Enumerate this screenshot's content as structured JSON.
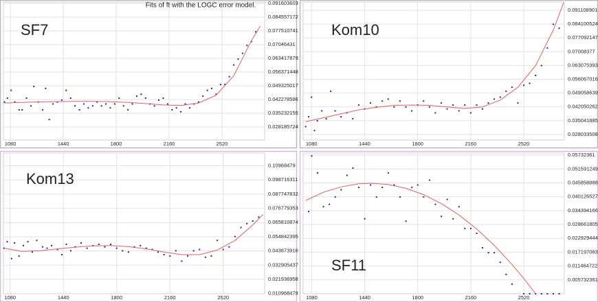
{
  "title": "Fits of ft with the LOGC error model.",
  "chart_data": [
    {
      "type": "scatter",
      "label": "SF7",
      "xlim": [
        1033,
        2810
      ],
      "ylim": [
        0.0215,
        0.0923
      ],
      "grid": true,
      "xticks": [
        1080,
        1440,
        1800,
        2160,
        2520
      ],
      "yticks": [
        0.028185724,
        0.035232155,
        0.042278586,
        0.049325017,
        0.056371448,
        0.063417879,
        0.07046431,
        0.077510741,
        0.084557172,
        0.091603603
      ],
      "series": [
        {
          "type": "scatter",
          "color": "#1f1fa8",
          "x": [
            1040,
            1060,
            1085,
            1110,
            1140,
            1160,
            1190,
            1220,
            1240,
            1270,
            1300,
            1320,
            1345,
            1370,
            1400,
            1430,
            1460,
            1490,
            1520,
            1550,
            1580,
            1610,
            1640,
            1670,
            1700,
            1730,
            1760,
            1790,
            1820,
            1850,
            1880,
            1910,
            1940,
            1970,
            2000,
            2030,
            2060,
            2090,
            2120,
            2150,
            2180,
            2210,
            2240,
            2270,
            2300,
            2330,
            2360,
            2390,
            2420,
            2450,
            2480,
            2510,
            2540,
            2570,
            2600,
            2630,
            2660,
            2690,
            2720,
            2750
          ],
          "values": [
            0.041,
            0.043,
            0.047,
            0.041,
            0.037,
            0.037,
            0.043,
            0.039,
            0.049,
            0.041,
            0.037,
            0.048,
            0.032,
            0.04,
            0.041,
            0.042,
            0.047,
            0.043,
            0.039,
            0.037,
            0.04,
            0.038,
            0.039,
            0.041,
            0.039,
            0.04,
            0.038,
            0.04,
            0.043,
            0.039,
            0.037,
            0.04,
            0.044,
            0.045,
            0.043,
            0.04,
            0.039,
            0.042,
            0.043,
            0.04,
            0.037,
            0.038,
            0.036,
            0.04,
            0.038,
            0.04,
            0.041,
            0.044,
            0.047,
            0.048,
            0.045,
            0.05,
            0.05,
            0.054,
            0.06,
            0.063,
            0.066,
            0.07,
            0.072,
            0.077
          ]
        },
        {
          "type": "line",
          "color": "#e06060",
          "x": [
            1040,
            1160,
            1280,
            1400,
            1520,
            1640,
            1760,
            1880,
            2000,
            2120,
            2240,
            2360,
            2480,
            2600,
            2720,
            2780
          ],
          "values": [
            0.0405,
            0.0408,
            0.0411,
            0.0412,
            0.0413,
            0.0413,
            0.0412,
            0.0408,
            0.0402,
            0.0395,
            0.0392,
            0.0405,
            0.0445,
            0.0545,
            0.0725,
            0.08
          ]
        }
      ]
    },
    {
      "type": "scatter",
      "label": "Kom10",
      "xlim": [
        1023,
        2795
      ],
      "ylim": [
        0.0252,
        0.0953
      ],
      "grid": true,
      "xticks": [
        1080,
        1440,
        1800,
        2160,
        2520
      ],
      "yticks": [
        0.028033508,
        0.035041885,
        0.042050262,
        0.049058639,
        0.056067016,
        0.063075393,
        0.07008377,
        0.077092147,
        0.084100524,
        0.091108901
      ],
      "series": [
        {
          "type": "scatter",
          "color": "#1f1fa8",
          "x": [
            1040,
            1060,
            1080,
            1100,
            1120,
            1150,
            1180,
            1210,
            1240,
            1280,
            1320,
            1360,
            1400,
            1440,
            1480,
            1520,
            1560,
            1600,
            1640,
            1680,
            1720,
            1760,
            1800,
            1840,
            1880,
            1920,
            1960,
            2000,
            2040,
            2080,
            2120,
            2160,
            2200,
            2240,
            2280,
            2320,
            2360,
            2400,
            2440,
            2480,
            2520,
            2560,
            2600,
            2640,
            2680,
            2720,
            2760
          ],
          "values": [
            0.032,
            0.037,
            0.047,
            0.03,
            0.035,
            0.04,
            0.036,
            0.05,
            0.04,
            0.037,
            0.039,
            0.036,
            0.043,
            0.041,
            0.044,
            0.042,
            0.045,
            0.046,
            0.042,
            0.045,
            0.042,
            0.04,
            0.043,
            0.045,
            0.042,
            0.039,
            0.044,
            0.041,
            0.043,
            0.04,
            0.043,
            0.039,
            0.043,
            0.041,
            0.044,
            0.046,
            0.047,
            0.05,
            0.052,
            0.044,
            0.053,
            0.054,
            0.058,
            0.063,
            0.072,
            0.084,
            0.082
          ]
        },
        {
          "type": "line",
          "color": "#e06060",
          "x": [
            1040,
            1160,
            1280,
            1400,
            1520,
            1640,
            1760,
            1880,
            2000,
            2120,
            2240,
            2360,
            2480,
            2600,
            2720,
            2790
          ],
          "values": [
            0.0345,
            0.0365,
            0.0385,
            0.0405,
            0.0418,
            0.0428,
            0.043,
            0.0428,
            0.042,
            0.0412,
            0.042,
            0.0455,
            0.052,
            0.063,
            0.081,
            0.095
          ]
        }
      ]
    },
    {
      "type": "scatter",
      "label": "Kom13",
      "xlim": [
        1035,
        2800
      ],
      "ylim": [
        0.0108,
        0.1195
      ],
      "grid": true,
      "xticks": [
        1080,
        1440,
        1800,
        2160,
        2520
      ],
      "yticks": [
        0.010968479,
        0.021936958,
        0.032905437,
        0.043873916,
        0.054842395,
        0.065810874,
        0.076779353,
        0.087747832,
        0.098716311,
        0.10968479
      ],
      "series": [
        {
          "type": "scatter",
          "color": "#1f1fa8",
          "x": [
            1040,
            1060,
            1090,
            1110,
            1140,
            1170,
            1200,
            1230,
            1260,
            1300,
            1330,
            1360,
            1400,
            1430,
            1460,
            1490,
            1520,
            1560,
            1600,
            1640,
            1680,
            1720,
            1760,
            1800,
            1840,
            1880,
            1920,
            1960,
            2000,
            2040,
            2080,
            2120,
            2160,
            2200,
            2240,
            2280,
            2320,
            2360,
            2400,
            2440,
            2480,
            2520,
            2560,
            2600,
            2640,
            2680,
            2720,
            2760
          ],
          "values": [
            0.046,
            0.051,
            0.038,
            0.05,
            0.04,
            0.048,
            0.051,
            0.043,
            0.052,
            0.047,
            0.046,
            0.048,
            0.045,
            0.041,
            0.049,
            0.044,
            0.047,
            0.05,
            0.046,
            0.048,
            0.049,
            0.047,
            0.049,
            0.046,
            0.044,
            0.043,
            0.047,
            0.048,
            0.046,
            0.045,
            0.043,
            0.041,
            0.04,
            0.044,
            0.036,
            0.04,
            0.044,
            0.045,
            0.039,
            0.04,
            0.052,
            0.045,
            0.047,
            0.055,
            0.062,
            0.065,
            0.067,
            0.07
          ]
        },
        {
          "type": "line",
          "color": "#e06060",
          "x": [
            1040,
            1160,
            1280,
            1400,
            1520,
            1640,
            1760,
            1880,
            2000,
            2120,
            2240,
            2360,
            2480,
            2600,
            2720,
            2790
          ],
          "values": [
            0.046,
            0.0435,
            0.044,
            0.0455,
            0.0468,
            0.0478,
            0.048,
            0.0472,
            0.0455,
            0.043,
            0.041,
            0.041,
            0.0445,
            0.052,
            0.064,
            0.072
          ]
        }
      ]
    },
    {
      "type": "scatter",
      "label": "SF11",
      "xlim": [
        1022,
        2795
      ],
      "ylim": [
        0,
        0.0582
      ],
      "grid": true,
      "xticks": [
        1080,
        1440,
        1800,
        2160,
        2520
      ],
      "yticks": [
        0.005732361,
        0.011464722,
        0.017197083,
        0.022929444,
        0.028661805,
        0.034394166,
        0.040126527,
        0.045858888,
        0.051591249,
        0.05732361
      ],
      "series": [
        {
          "type": "scatter",
          "color": "#1f1fa8",
          "x": [
            1060,
            1080,
            1120,
            1160,
            1200,
            1240,
            1280,
            1320,
            1360,
            1400,
            1440,
            1480,
            1520,
            1560,
            1600,
            1640,
            1680,
            1720,
            1760,
            1800,
            1840,
            1880,
            1920,
            1960,
            2000,
            2040,
            2080,
            2120,
            2160,
            2200,
            2240,
            2280,
            2320,
            2360,
            2400,
            2440,
            2520,
            2560,
            2600,
            2640,
            2680,
            2720,
            2760
          ],
          "values": [
            0.034,
            0.057,
            0.05,
            0.036,
            0.037,
            0.04,
            0.043,
            0.049,
            0.052,
            0.044,
            0.031,
            0.045,
            0.04,
            0.044,
            0.05,
            0.045,
            0.04,
            0.03,
            0.044,
            0.045,
            0.04,
            0.047,
            0.037,
            0.032,
            0.039,
            0.031,
            0.036,
            0.027,
            0.027,
            0.025,
            0.019,
            0.017,
            0.017,
            0.013,
            0.008,
            0.004,
            0,
            0,
            0,
            0,
            0,
            0,
            0
          ]
        },
        {
          "type": "line",
          "color": "#e06060",
          "x": [
            1040,
            1160,
            1280,
            1400,
            1480,
            1600,
            1720,
            1840,
            1960,
            2080,
            2200,
            2320,
            2440,
            2520,
            2600
          ],
          "values": [
            0.0386,
            0.042,
            0.0442,
            0.0455,
            0.0457,
            0.0452,
            0.0436,
            0.041,
            0.0373,
            0.0326,
            0.0268,
            0.02,
            0.0121,
            0.0063,
            0
          ]
        }
      ]
    }
  ]
}
